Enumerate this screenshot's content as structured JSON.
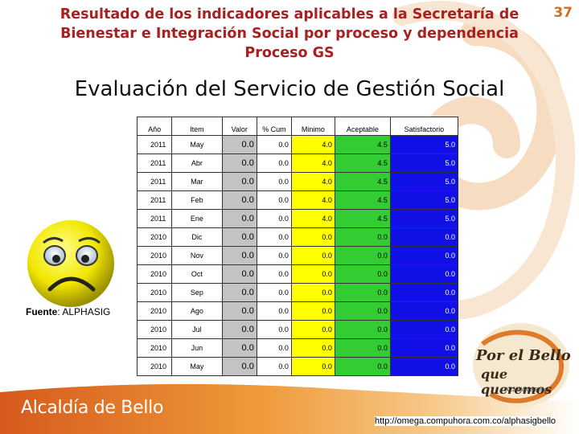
{
  "header": {
    "title_line1": "Resultado de los indicadores aplicables a la Secretaría de",
    "title_line2": "Bienestar e Integración Social por proceso y dependencia",
    "title_line3": "Proceso GS",
    "page_number": "37"
  },
  "main_title": "Evaluación del Servicio de Gestión Social",
  "table": {
    "columns": [
      "Año",
      "Item",
      "Valor",
      "% Cum",
      "Minimo",
      "Aceptable",
      "Satisfactorio"
    ],
    "rows": [
      [
        "2011",
        "May",
        "0.0",
        "0.0",
        "4.0",
        "4.5",
        "5.0"
      ],
      [
        "2011",
        "Abr",
        "0.0",
        "0.0",
        "4.0",
        "4.5",
        "5.0"
      ],
      [
        "2011",
        "Mar",
        "0.0",
        "0.0",
        "4.0",
        "4.5",
        "5.0"
      ],
      [
        "2011",
        "Feb",
        "0.0",
        "0.0",
        "4.0",
        "4.5",
        "5.0"
      ],
      [
        "2011",
        "Ene",
        "0.0",
        "0.0",
        "4.0",
        "4.5",
        "5.0"
      ],
      [
        "2010",
        "Dic",
        "0.0",
        "0.0",
        "0.0",
        "0.0",
        "0.0"
      ],
      [
        "2010",
        "Nov",
        "0.0",
        "0.0",
        "0.0",
        "0.0",
        "0.0"
      ],
      [
        "2010",
        "Oct",
        "0.0",
        "0.0",
        "0.0",
        "0.0",
        "0.0"
      ],
      [
        "2010",
        "Sep",
        "0.0",
        "0.0",
        "0.0",
        "0.0",
        "0.0"
      ],
      [
        "2010",
        "Ago",
        "0.0",
        "0.0",
        "0.0",
        "0.0",
        "0.0"
      ],
      [
        "2010",
        "Jul",
        "0.0",
        "0.0",
        "0.0",
        "0.0",
        "0.0"
      ],
      [
        "2010",
        "Jun",
        "0.0",
        "0.0",
        "0.0",
        "0.0",
        "0.0"
      ],
      [
        "2010",
        "May",
        "0.0",
        "0.0",
        "0.0",
        "0.0",
        "0.0"
      ]
    ]
  },
  "source": {
    "label": "Fuente",
    "value": ": ALPHASIG"
  },
  "footer": {
    "brand": "Alcaldía de Bello",
    "logo_line1": "Por el Bello",
    "logo_line2": "que queremos",
    "logo_caption": "Alcaldía de Bello",
    "url": "http://omega.compuhora.com.co/alphasigbello"
  },
  "icons": {
    "smiley": "sad-face-icon",
    "logo": "bello-logo-icon"
  },
  "colors": {
    "title_red": "#a8201f",
    "accent_orange": "#e07a2b",
    "valor_gray": "#c3c3c3",
    "minimo_yellow": "#ffff00",
    "aceptable_green": "#33cc33",
    "satisfactorio_blue": "#1010e6"
  }
}
